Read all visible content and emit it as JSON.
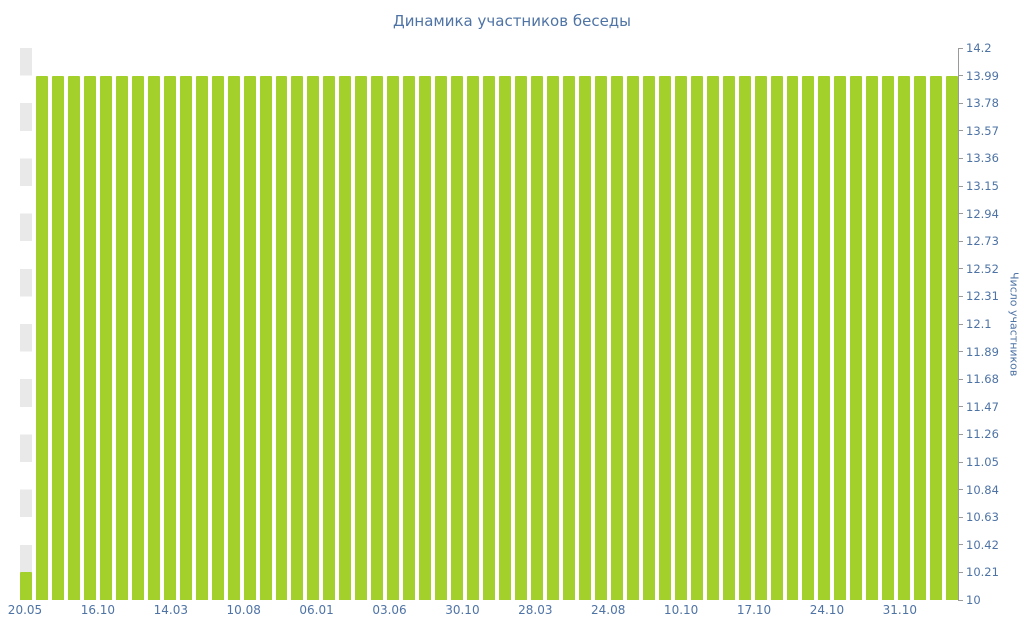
{
  "chart_data": {
    "type": "bar",
    "title": "Динамика участников беседы",
    "xlabel": "",
    "ylabel": "Число участников",
    "ylim": [
      10,
      14.2
    ],
    "ytick_step": 0.21,
    "ytick_labels": [
      "10",
      "10.21",
      "10.42",
      "10.63",
      "10.84",
      "11.05",
      "11.26",
      "11.47",
      "11.68",
      "11.89",
      "12.1",
      "12.31",
      "12.52",
      "12.73",
      "12.94",
      "13.15",
      "13.36",
      "13.57",
      "13.78",
      "13.99",
      "14.2"
    ],
    "xtick_labels": [
      "20.05",
      "16.10",
      "14.03",
      "10.08",
      "06.01",
      "03.06",
      "30.10",
      "28.03",
      "24.08",
      "10.10",
      "17.10",
      "24.10",
      "31.10"
    ],
    "values": [
      10.21,
      13.99,
      13.99,
      13.99,
      13.99,
      13.99,
      13.99,
      13.99,
      13.99,
      13.99,
      13.99,
      13.99,
      13.99,
      13.99,
      13.99,
      13.99,
      13.99,
      13.99,
      13.99,
      13.99,
      13.99,
      13.99,
      13.99,
      13.99,
      13.99,
      13.99,
      13.99,
      13.99,
      13.99,
      13.99,
      13.99,
      13.99,
      13.99,
      13.99,
      13.99,
      13.99,
      13.99,
      13.99,
      13.99,
      13.99,
      13.99,
      13.99,
      13.99,
      13.99,
      13.99,
      13.99,
      13.99,
      13.99,
      13.99,
      13.99,
      13.99,
      13.99,
      13.99,
      13.99,
      13.99,
      13.99,
      13.99,
      13.99,
      13.99
    ],
    "legend": false,
    "grid": "horizontal-bands",
    "colors": {
      "bar": "#a3d02a",
      "text": "#4e73a5",
      "band": "#e9e9e9",
      "axis": "#9a9a9a"
    }
  }
}
